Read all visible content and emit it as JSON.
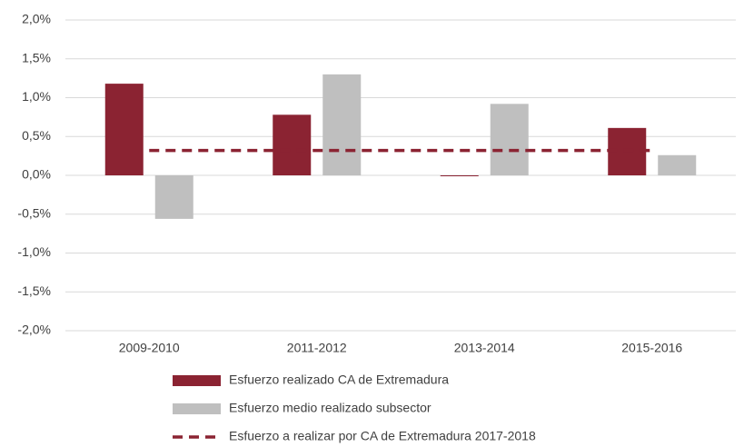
{
  "chart_data": {
    "type": "bar",
    "categories": [
      "2009-2010",
      "2011-2012",
      "2013-2014",
      "2015-2016"
    ],
    "series": [
      {
        "name": "Esfuerzo realizado CA de Extremadura",
        "color": "#8b2332",
        "type": "bar",
        "values": [
          1.18,
          0.78,
          -0.01,
          0.61
        ]
      },
      {
        "name": "Esfuerzo medio realizado subsector",
        "color": "#bfbfbf",
        "type": "bar",
        "values": [
          -0.56,
          1.3,
          0.92,
          0.26
        ]
      },
      {
        "name": "Esfuerzo a realizar por CA de Extremadura 2017-2018",
        "color": "#8b2332",
        "type": "line",
        "dashed": true,
        "values": [
          0.32,
          0.32,
          0.32,
          0.32
        ]
      }
    ],
    "ylim": [
      -2,
      2
    ],
    "yticks": [
      {
        "value": 2,
        "label": "2,0%"
      },
      {
        "value": 1.5,
        "label": "1,5%"
      },
      {
        "value": 1,
        "label": "1,0%"
      },
      {
        "value": 0.5,
        "label": "0,5%"
      },
      {
        "value": 0,
        "label": "0,0%"
      },
      {
        "value": -0.5,
        "label": "-0,5%"
      },
      {
        "value": -1,
        "label": "-1,0%"
      },
      {
        "value": -1.5,
        "label": "-1,5%"
      },
      {
        "value": -2,
        "label": "-2,0%"
      }
    ],
    "grid": true
  }
}
